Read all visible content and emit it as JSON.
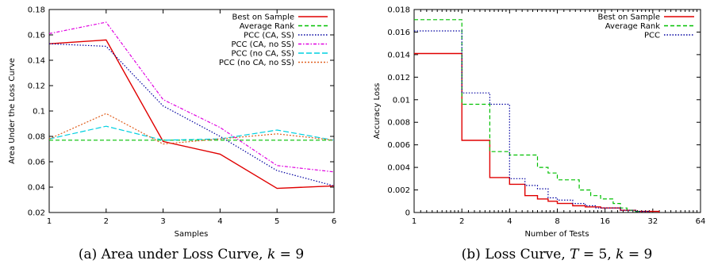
{
  "chart_data": [
    {
      "type": "line",
      "xlabel": "Samples",
      "ylabel": "Area Under the Loss Curve",
      "x": [
        1,
        2,
        3,
        4,
        5,
        6
      ],
      "xticks": [
        1,
        2,
        3,
        4,
        5,
        6
      ],
      "ylim": [
        0.02,
        0.18
      ],
      "yticks": [
        "0.02",
        "0.04",
        "0.06",
        "0.08",
        "0.1",
        "0.12",
        "0.14",
        "0.16",
        "0.18"
      ],
      "grid": false,
      "legend_position": "top-right",
      "series": [
        {
          "name": "Best on Sample",
          "color": "#e00000",
          "dash": "solid",
          "values": [
            0.153,
            0.156,
            0.076,
            0.066,
            0.039,
            0.041
          ]
        },
        {
          "name": "Average Rank",
          "color": "#00c000",
          "dash": "dashed",
          "values": [
            0.077,
            0.077,
            0.077,
            0.077,
            0.077,
            0.077
          ]
        },
        {
          "name": "PCC (CA, SS)",
          "color": "#0000a0",
          "dash": "dotted",
          "values": [
            0.153,
            0.151,
            0.104,
            0.08,
            0.053,
            0.041
          ]
        },
        {
          "name": "PCC (CA, no SS)",
          "color": "#e000e0",
          "dash": "dashdot",
          "values": [
            0.161,
            0.17,
            0.109,
            0.087,
            0.057,
            0.052
          ]
        },
        {
          "name": "PCC (no CA, SS)",
          "color": "#00d0e0",
          "dash": "longdash",
          "values": [
            0.078,
            0.088,
            0.077,
            0.078,
            0.085,
            0.077
          ]
        },
        {
          "name": "PCC (no CA, no SS)",
          "color": "#e06020",
          "dash": "shortdot",
          "values": [
            0.078,
            0.098,
            0.074,
            0.078,
            0.082,
            0.077
          ]
        }
      ]
    },
    {
      "type": "line",
      "step": true,
      "xlabel": "Number of Tests",
      "ylabel": "Accuracy Loss",
      "xscale": "log2",
      "xlim": [
        1,
        64
      ],
      "xticks": [
        1,
        2,
        4,
        8,
        16,
        32,
        64
      ],
      "ylim": [
        0,
        0.018
      ],
      "yticks": [
        "0",
        "0.002",
        "0.004",
        "0.006",
        "0.008",
        "0.01",
        "0.012",
        "0.014",
        "0.016",
        "0.018"
      ],
      "grid": false,
      "legend_position": "top-right",
      "series": [
        {
          "name": "Best on Sample",
          "color": "#e00000",
          "dash": "solid",
          "points": [
            [
              1,
              0.0141
            ],
            [
              2,
              0.0064
            ],
            [
              3,
              0.0031
            ],
            [
              4,
              0.0025
            ],
            [
              5,
              0.0015
            ],
            [
              6,
              0.0012
            ],
            [
              7,
              0.001
            ],
            [
              8,
              0.0008
            ],
            [
              10,
              0.0006
            ],
            [
              12,
              0.0005
            ],
            [
              15,
              0.0004
            ],
            [
              20,
              0.0002
            ],
            [
              25,
              0.0001
            ],
            [
              35,
              0
            ]
          ]
        },
        {
          "name": "Average Rank",
          "color": "#00c000",
          "dash": "dashed",
          "points": [
            [
              1,
              0.0171
            ],
            [
              2,
              0.0096
            ],
            [
              3,
              0.0054
            ],
            [
              4,
              0.0051
            ],
            [
              6,
              0.004
            ],
            [
              7,
              0.0035
            ],
            [
              8,
              0.0029
            ],
            [
              11,
              0.002
            ],
            [
              13,
              0.0015
            ],
            [
              15,
              0.0012
            ],
            [
              18,
              0.0008
            ],
            [
              20,
              0.0004
            ],
            [
              22,
              0.0002
            ],
            [
              24,
              0.0001
            ],
            [
              26,
              0
            ]
          ]
        },
        {
          "name": "PCC",
          "color": "#0000a0",
          "dash": "dotted",
          "points": [
            [
              1,
              0.0161
            ],
            [
              2,
              0.0106
            ],
            [
              3,
              0.0096
            ],
            [
              4,
              0.003
            ],
            [
              5,
              0.0024
            ],
            [
              6,
              0.0021
            ],
            [
              7,
              0.0013
            ],
            [
              8,
              0.0011
            ],
            [
              10,
              0.0008
            ],
            [
              12,
              0.0006
            ],
            [
              14,
              0.0004
            ],
            [
              20,
              0.0002
            ],
            [
              25,
              0.0001
            ],
            [
              30,
              0
            ]
          ]
        }
      ]
    }
  ],
  "captions": {
    "a": "(a) Area under Loss Curve, k = 9",
    "b": "(b) Loss Curve, T = 5, k = 9"
  }
}
